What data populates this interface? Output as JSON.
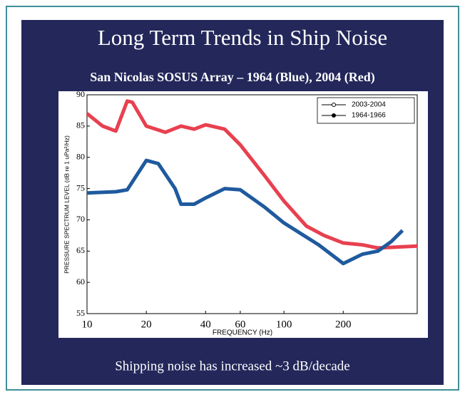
{
  "slide": {
    "title": "Long Term Trends in Ship Noise",
    "footer": "Shipping noise has increased  ~3 dB/decade"
  },
  "chart_data": {
    "type": "line",
    "title": "San Nicolas SOSUS Array – 1964 (Blue), 2004 (Red)",
    "xlabel": "FREQUENCY (Hz)",
    "ylabel": "PRESSURE SPECTRUM LEVEL (dB re 1 uPa²/Hz)",
    "xscale": "log",
    "xlim": [
      10,
      475
    ],
    "xticks": [
      10,
      20,
      40,
      60,
      100,
      200
    ],
    "ylim": [
      55,
      90
    ],
    "yticks": [
      55,
      60,
      65,
      70,
      75,
      80,
      85,
      90
    ],
    "legend": "upper right",
    "series": [
      {
        "name": "2003-2004",
        "color": "#e8404f",
        "x": [
          10,
          12,
          14,
          16,
          17,
          20,
          25,
          30,
          35,
          40,
          50,
          60,
          80,
          100,
          130,
          160,
          200,
          250,
          300,
          475
        ],
        "values": [
          87,
          85,
          84.2,
          89,
          88.8,
          85,
          84,
          85,
          84.5,
          85.2,
          84.5,
          82,
          77,
          73,
          69,
          67.5,
          66.3,
          66,
          65.5,
          65.8
        ]
      },
      {
        "name": "1964-1966",
        "color": "#1f5a9e",
        "x": [
          10,
          14,
          16,
          20,
          23,
          28,
          30,
          35,
          40,
          50,
          60,
          80,
          100,
          150,
          200,
          250,
          300,
          350,
          400
        ],
        "values": [
          74.3,
          74.5,
          74.8,
          79.5,
          79,
          75,
          72.5,
          72.5,
          73.5,
          75,
          74.8,
          72,
          69.5,
          66,
          63,
          64.5,
          65,
          66.5,
          68.3
        ]
      }
    ]
  }
}
